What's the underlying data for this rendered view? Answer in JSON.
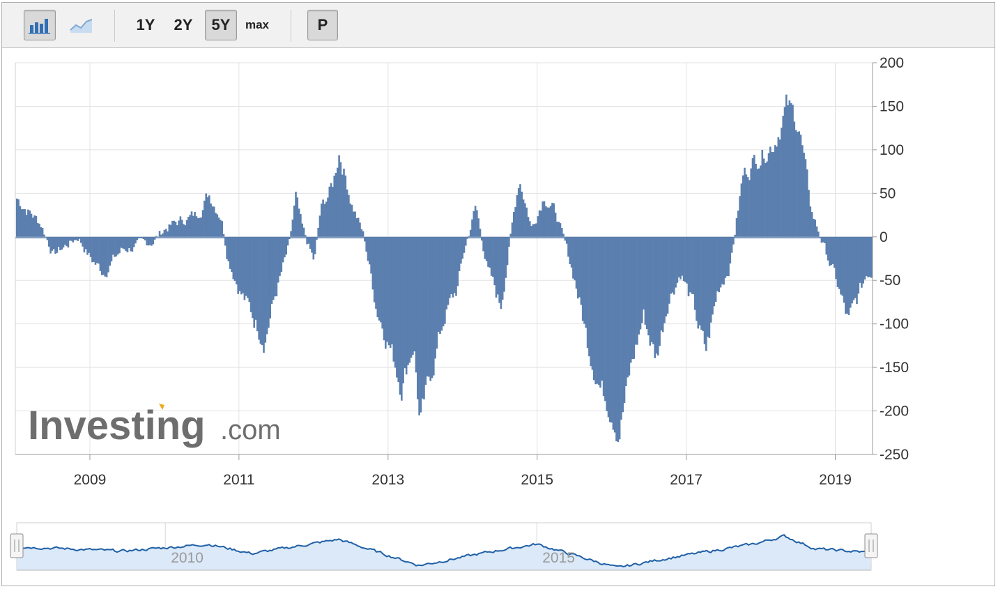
{
  "toolbar": {
    "bar_chart_icon": "bar-chart-icon",
    "line_chart_icon": "line-chart-icon",
    "ranges": [
      "1Y",
      "2Y",
      "5Y",
      "max"
    ],
    "active_range": "5Y",
    "p_label": "P"
  },
  "logo": {
    "main": "Investing",
    "suffix": ".com"
  },
  "colors": {
    "bar": "#5b7fae",
    "grid": "#e2e2e2",
    "nav_line": "#1f5fa6",
    "nav_fill": "#dbe9f8"
  },
  "chart_data": {
    "type": "bar",
    "x_range": [
      "2008-01",
      "2019-06"
    ],
    "y_range": [
      -250,
      200
    ],
    "y_ticks": [
      "200",
      "150",
      "100",
      "50",
      "0",
      "-50",
      "-100",
      "-150",
      "-200",
      "-250"
    ],
    "x_ticks": [
      "2009",
      "2011",
      "2013",
      "2015",
      "2017",
      "2019"
    ],
    "series_profile": [
      {
        "x": "2008-01",
        "y": 45
      },
      {
        "x": "2008-03",
        "y": 30
      },
      {
        "x": "2008-05",
        "y": 15
      },
      {
        "x": "2008-07",
        "y": -20
      },
      {
        "x": "2008-09",
        "y": -10
      },
      {
        "x": "2008-11",
        "y": 0
      },
      {
        "x": "2009-01",
        "y": -25
      },
      {
        "x": "2009-03",
        "y": -40
      },
      {
        "x": "2009-06",
        "y": -15
      },
      {
        "x": "2009-09",
        "y": -10
      },
      {
        "x": "2009-11",
        "y": -5
      },
      {
        "x": "2010-01",
        "y": 10
      },
      {
        "x": "2010-04",
        "y": 20
      },
      {
        "x": "2010-06",
        "y": 25
      },
      {
        "x": "2010-08",
        "y": 50
      },
      {
        "x": "2010-10",
        "y": 25
      },
      {
        "x": "2010-11",
        "y": -20
      },
      {
        "x": "2011-01",
        "y": -60
      },
      {
        "x": "2011-03",
        "y": -90
      },
      {
        "x": "2011-05",
        "y": -115
      },
      {
        "x": "2011-07",
        "y": -60
      },
      {
        "x": "2011-09",
        "y": -10
      },
      {
        "x": "2011-10",
        "y": 45
      },
      {
        "x": "2011-11",
        "y": 10
      },
      {
        "x": "2012-01",
        "y": -30
      },
      {
        "x": "2012-02",
        "y": 30
      },
      {
        "x": "2012-04",
        "y": 60
      },
      {
        "x": "2012-05",
        "y": 100
      },
      {
        "x": "2012-07",
        "y": 40
      },
      {
        "x": "2012-09",
        "y": 0
      },
      {
        "x": "2012-11",
        "y": -80
      },
      {
        "x": "2013-01",
        "y": -120
      },
      {
        "x": "2013-03",
        "y": -170
      },
      {
        "x": "2013-05",
        "y": -120
      },
      {
        "x": "2013-06",
        "y": -215
      },
      {
        "x": "2013-08",
        "y": -150
      },
      {
        "x": "2013-10",
        "y": -90
      },
      {
        "x": "2013-12",
        "y": -60
      },
      {
        "x": "2014-01",
        "y": -20
      },
      {
        "x": "2014-03",
        "y": 35
      },
      {
        "x": "2014-05",
        "y": -40
      },
      {
        "x": "2014-07",
        "y": -80
      },
      {
        "x": "2014-09",
        "y": 20
      },
      {
        "x": "2014-10",
        "y": 70
      },
      {
        "x": "2014-12",
        "y": 10
      },
      {
        "x": "2015-02",
        "y": 50
      },
      {
        "x": "2015-04",
        "y": 25
      },
      {
        "x": "2015-07",
        "y": -50
      },
      {
        "x": "2015-09",
        "y": -120
      },
      {
        "x": "2015-11",
        "y": -170
      },
      {
        "x": "2016-01",
        "y": -200
      },
      {
        "x": "2016-02",
        "y": -225
      },
      {
        "x": "2016-04",
        "y": -150
      },
      {
        "x": "2016-06",
        "y": -90
      },
      {
        "x": "2016-08",
        "y": -140
      },
      {
        "x": "2016-10",
        "y": -70
      },
      {
        "x": "2016-12",
        "y": -40
      },
      {
        "x": "2017-02",
        "y": -80
      },
      {
        "x": "2017-04",
        "y": -135
      },
      {
        "x": "2017-06",
        "y": -60
      },
      {
        "x": "2017-08",
        "y": -30
      },
      {
        "x": "2017-10",
        "y": 70
      },
      {
        "x": "2017-12",
        "y": 90
      },
      {
        "x": "2018-03",
        "y": 110
      },
      {
        "x": "2018-05",
        "y": 150
      },
      {
        "x": "2018-07",
        "y": 130
      },
      {
        "x": "2018-09",
        "y": 30
      },
      {
        "x": "2018-11",
        "y": -10
      },
      {
        "x": "2019-01",
        "y": -50
      },
      {
        "x": "2019-03",
        "y": -100
      },
      {
        "x": "2019-06",
        "y": -40
      }
    ],
    "navigator": {
      "labels": [
        "2010",
        "2015"
      ],
      "profile": [
        {
          "x": "2008-01",
          "y": 50
        },
        {
          "x": "2009-06",
          "y": 40
        },
        {
          "x": "2010-08",
          "y": 55
        },
        {
          "x": "2011-03",
          "y": 35
        },
        {
          "x": "2012-05",
          "y": 65
        },
        {
          "x": "2013-06",
          "y": 10
        },
        {
          "x": "2014-06",
          "y": 40
        },
        {
          "x": "2015-01",
          "y": 55
        },
        {
          "x": "2016-02",
          "y": 5
        },
        {
          "x": "2016-10",
          "y": 25
        },
        {
          "x": "2017-12",
          "y": 55
        },
        {
          "x": "2018-05",
          "y": 72
        },
        {
          "x": "2018-10",
          "y": 45
        },
        {
          "x": "2019-06",
          "y": 38
        }
      ]
    }
  }
}
